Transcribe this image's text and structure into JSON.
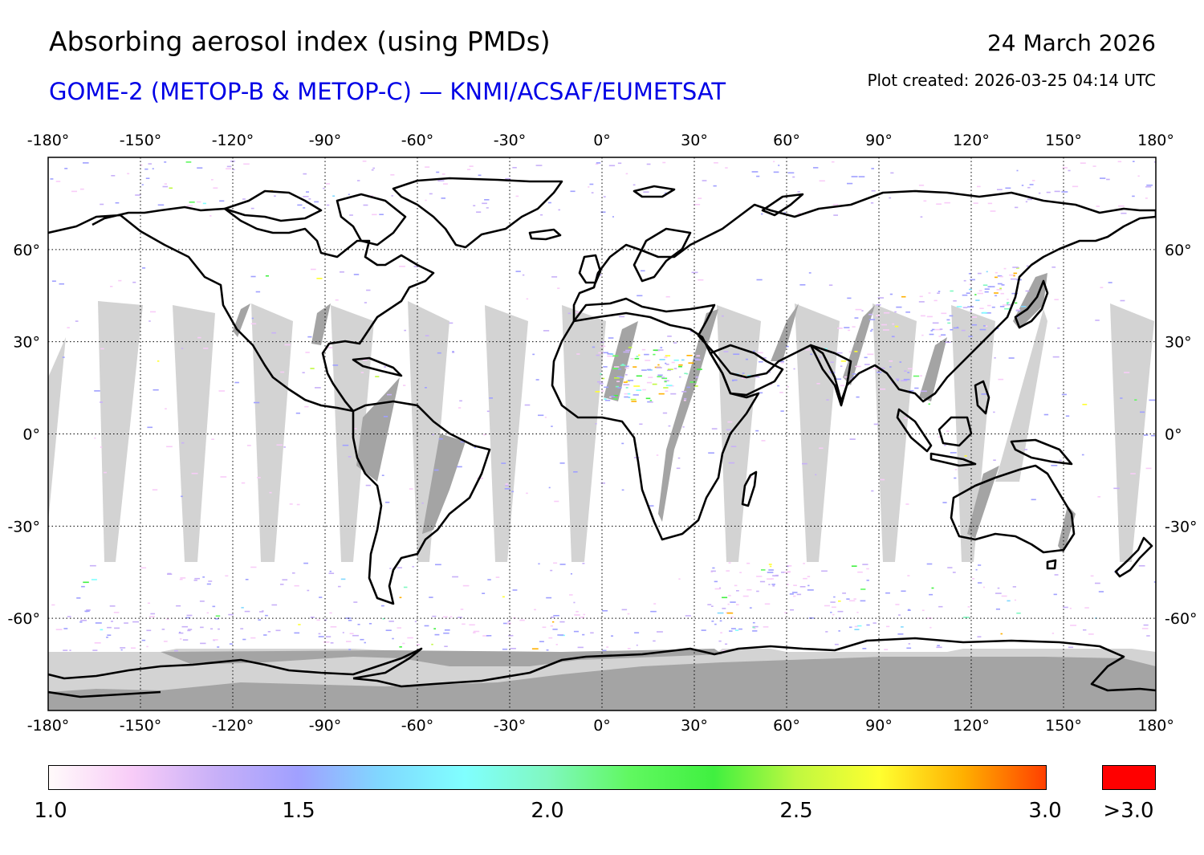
{
  "header": {
    "title": "Absorbing aerosol index (using PMDs)",
    "subtitle": "GOME-2 (METOP-B & METOP-C) — KNMI/ACSAF/EUMETSAT",
    "date": "24 March 2026",
    "plot_created": "Plot created: 2026-03-25 04:14 UTC"
  },
  "map": {
    "lon_ticks": [
      -180,
      -150,
      -120,
      -90,
      -60,
      -30,
      0,
      30,
      60,
      90,
      120,
      150,
      180
    ],
    "lon_labels": [
      "-180°",
      "-150°",
      "-120°",
      "-90°",
      "-60°",
      "-30°",
      "0°",
      "30°",
      "60°",
      "90°",
      "120°",
      "150°",
      "180°"
    ],
    "lat_ticks": [
      60,
      30,
      0,
      -30,
      -60
    ],
    "lat_labels": [
      "60°",
      "30°",
      "0°",
      "-30°",
      "-60°"
    ],
    "lat_range": [
      -90,
      90
    ],
    "lon_range": [
      -180,
      180
    ],
    "colors": {
      "no_data_light": "#d3d3d3",
      "no_data_dark": "#a4a4a4",
      "coast": "#000000",
      "grid": "#000000"
    }
  },
  "colorbar": {
    "labels": [
      "1.0",
      "1.5",
      "2.0",
      "2.5",
      "3.0"
    ],
    "over_label": ">3.0",
    "min": 1.0,
    "max": 3.0,
    "over_color": "#ff0000",
    "gradient": [
      "#fffafa",
      "#f8ccf8",
      "#c8b0f8",
      "#a0a0ff",
      "#80d8ff",
      "#80ffff",
      "#80f8c0",
      "#60f860",
      "#40f040",
      "#c0f840",
      "#ffff30",
      "#ffb000",
      "#ff4000"
    ]
  }
}
